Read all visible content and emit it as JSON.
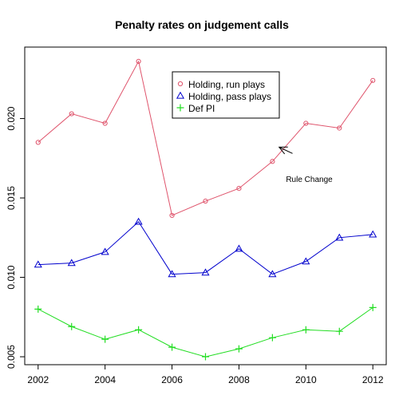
{
  "chart_data": {
    "type": "line",
    "title": "Penalty rates on judgement calls",
    "xlabel": "",
    "ylabel": "",
    "x": [
      2002,
      2003,
      2004,
      2005,
      2006,
      2007,
      2008,
      2009,
      2010,
      2011,
      2012
    ],
    "xlim": [
      2001.6,
      2012.4
    ],
    "ylim": [
      0.0045,
      0.0245
    ],
    "x_ticks": [
      2002,
      2004,
      2006,
      2008,
      2010,
      2012
    ],
    "x_tick_labels": [
      "2002",
      "2004",
      "2006",
      "2008",
      "2010",
      "2012"
    ],
    "y_ticks": [
      0.005,
      0.01,
      0.015,
      0.02
    ],
    "y_tick_labels": [
      "0.005",
      "0.010",
      "0.015",
      "0.020"
    ],
    "grid": false,
    "legend_position": "top-right",
    "series": [
      {
        "name": "Holding, run plays",
        "marker": "circle",
        "color": "#DF536B",
        "values": [
          0.0185,
          0.0203,
          0.0197,
          0.0236,
          0.0139,
          0.0148,
          0.0156,
          0.0173,
          0.0197,
          0.0194,
          0.0224
        ]
      },
      {
        "name": "Holding, pass plays",
        "marker": "triangle",
        "color": "#0000CD",
        "values": [
          0.0108,
          0.0109,
          0.0116,
          0.0135,
          0.0102,
          0.0103,
          0.0118,
          0.0102,
          0.011,
          0.0125,
          0.0127
        ]
      },
      {
        "name": "Def PI",
        "marker": "plus",
        "color": "#22DD22",
        "values": [
          0.008,
          0.0069,
          0.0061,
          0.0067,
          0.0056,
          0.005,
          0.0055,
          0.0062,
          0.0067,
          0.0066,
          0.0081
        ]
      }
    ],
    "annotations": [
      {
        "text": "Rule Change",
        "arrow_from": [
          2009.6,
          0.0178
        ],
        "arrow_to": [
          2009.2,
          0.0182
        ],
        "text_at": [
          2010.1,
          0.016
        ]
      }
    ]
  }
}
